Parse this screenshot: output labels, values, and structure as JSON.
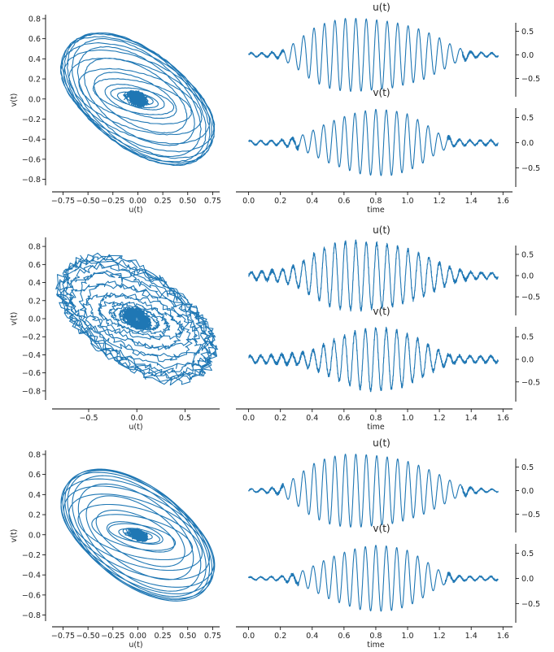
{
  "style": {
    "line_color": "#1f77b4"
  },
  "chart_data": [
    {
      "type": "line",
      "row": 0,
      "phase": {
        "xlabel": "u(t)",
        "ylabel": "v(t)",
        "xlim": [
          -0.86,
          0.82
        ],
        "ylim": [
          -0.86,
          0.84
        ],
        "xticks": [
          -0.75,
          -0.5,
          -0.25,
          0.0,
          0.25,
          0.5,
          0.75
        ],
        "xticklabels": [
          "−0.75",
          "−0.50",
          "−0.25",
          "0.00",
          "0.25",
          "0.50",
          "0.75"
        ],
        "yticks": [
          -0.8,
          -0.6,
          -0.4,
          -0.2,
          0.0,
          0.2,
          0.4,
          0.6,
          0.8
        ],
        "yticklabels": [
          "−0.8",
          "−0.6",
          "−0.4",
          "−0.2",
          "0.0",
          "0.2",
          "0.4",
          "0.6",
          "0.8"
        ]
      },
      "series_u": {
        "title": "u(t)",
        "xlim": [
          -0.08,
          1.66
        ],
        "ylim": [
          -0.85,
          0.85
        ],
        "yticks": [
          -0.5,
          0.0,
          0.5
        ],
        "yticklabels": [
          "−0.5",
          "0.0",
          "0.5"
        ],
        "x": [
          0.0,
          0.1,
          0.2,
          0.3,
          0.4,
          0.5,
          0.6,
          0.7,
          0.8,
          0.9,
          1.0,
          1.1,
          1.2,
          1.3,
          1.4,
          1.5,
          1.57
        ],
        "amplitude": [
          0.04,
          0.04,
          0.07,
          0.28,
          0.55,
          0.7,
          0.77,
          0.77,
          0.74,
          0.7,
          0.62,
          0.52,
          0.36,
          0.17,
          0.06,
          0.04,
          0.04
        ]
      },
      "series_v": {
        "title": "v(t)",
        "xlabel": "time",
        "xlim": [
          -0.08,
          1.66
        ],
        "ylim": [
          -0.85,
          0.85
        ],
        "xticks": [
          0.0,
          0.2,
          0.4,
          0.6,
          0.8,
          1.0,
          1.2,
          1.4,
          1.6
        ],
        "xticklabels": [
          "0.0",
          "0.2",
          "0.4",
          "0.6",
          "0.8",
          "1.0",
          "1.2",
          "1.4",
          "1.6"
        ],
        "yticks": [
          -0.5,
          0.0,
          0.5
        ],
        "yticklabels": [
          "−0.5",
          "0.0",
          "0.5"
        ],
        "x": [
          0.0,
          0.1,
          0.2,
          0.3,
          0.4,
          0.5,
          0.6,
          0.7,
          0.8,
          0.9,
          1.0,
          1.1,
          1.2,
          1.3,
          1.4,
          1.5,
          1.57
        ],
        "amplitude": [
          0.04,
          0.04,
          0.05,
          0.1,
          0.24,
          0.4,
          0.52,
          0.62,
          0.66,
          0.65,
          0.57,
          0.4,
          0.18,
          0.06,
          0.05,
          0.05,
          0.05
        ]
      }
    },
    {
      "type": "line",
      "row": 1,
      "phase": {
        "xlabel": "u(t)",
        "ylabel": "v(t)",
        "xlim": [
          -0.88,
          0.86
        ],
        "ylim": [
          -0.9,
          0.9
        ],
        "xticks": [
          -0.5,
          0.0,
          0.5
        ],
        "xticklabels": [
          "−0.5",
          "0.0",
          "0.5"
        ],
        "yticks": [
          -0.8,
          -0.6,
          -0.4,
          -0.2,
          0.0,
          0.2,
          0.4,
          0.6,
          0.8
        ],
        "yticklabels": [
          "−0.8",
          "−0.6",
          "−0.4",
          "−0.2",
          "0.0",
          "0.2",
          "0.4",
          "0.6",
          "0.8"
        ]
      },
      "series_u": {
        "title": "u(t)",
        "xlim": [
          -0.08,
          1.66
        ],
        "ylim": [
          -0.9,
          0.9
        ],
        "yticks": [
          -0.5,
          0.0,
          0.5
        ],
        "yticklabels": [
          "−0.5",
          "0.0",
          "0.5"
        ],
        "x": [
          0.0,
          0.1,
          0.2,
          0.3,
          0.4,
          0.5,
          0.6,
          0.7,
          0.8,
          0.9,
          1.0,
          1.1,
          1.2,
          1.3,
          1.4,
          1.5,
          1.57
        ],
        "amplitude": [
          0.08,
          0.1,
          0.14,
          0.24,
          0.48,
          0.7,
          0.8,
          0.8,
          0.76,
          0.72,
          0.62,
          0.48,
          0.3,
          0.15,
          0.08,
          0.07,
          0.06
        ]
      },
      "series_v": {
        "title": "v(t)",
        "xlabel": "time",
        "xlim": [
          -0.08,
          1.66
        ],
        "ylim": [
          -0.9,
          0.9
        ],
        "xticks": [
          0.0,
          0.2,
          0.4,
          0.6,
          0.8,
          1.0,
          1.2,
          1.4,
          1.6
        ],
        "xticklabels": [
          "0.0",
          "0.2",
          "0.4",
          "0.6",
          "0.8",
          "1.0",
          "1.2",
          "1.4",
          "1.6"
        ],
        "yticks": [
          -0.5,
          0.0,
          0.5
        ],
        "yticklabels": [
          "−0.5",
          "0.0",
          "0.5"
        ],
        "x": [
          0.0,
          0.1,
          0.2,
          0.3,
          0.4,
          0.5,
          0.6,
          0.7,
          0.8,
          0.9,
          1.0,
          1.1,
          1.2,
          1.3,
          1.4,
          1.5,
          1.57
        ],
        "amplitude": [
          0.07,
          0.08,
          0.1,
          0.12,
          0.2,
          0.36,
          0.52,
          0.64,
          0.7,
          0.66,
          0.56,
          0.38,
          0.18,
          0.08,
          0.07,
          0.07,
          0.07
        ]
      }
    },
    {
      "type": "line",
      "row": 2,
      "phase": {
        "xlabel": "u(t)",
        "ylabel": "v(t)",
        "xlim": [
          -0.86,
          0.82
        ],
        "ylim": [
          -0.86,
          0.84
        ],
        "xticks": [
          -0.75,
          -0.5,
          -0.25,
          0.0,
          0.25,
          0.5,
          0.75
        ],
        "xticklabels": [
          "−0.75",
          "−0.50",
          "−0.25",
          "0.00",
          "0.25",
          "0.50",
          "0.75"
        ],
        "yticks": [
          -0.8,
          -0.6,
          -0.4,
          -0.2,
          0.0,
          0.2,
          0.4,
          0.6,
          0.8
        ],
        "yticklabels": [
          "−0.8",
          "−0.6",
          "−0.4",
          "−0.2",
          "0.0",
          "0.2",
          "0.4",
          "0.6",
          "0.8"
        ]
      },
      "series_u": {
        "title": "u(t)",
        "xlim": [
          -0.08,
          1.66
        ],
        "ylim": [
          -0.85,
          0.85
        ],
        "yticks": [
          -0.5,
          0.0,
          0.5
        ],
        "yticklabels": [
          "−0.5",
          "0.0",
          "0.5"
        ],
        "x": [
          0.0,
          0.1,
          0.2,
          0.3,
          0.4,
          0.5,
          0.6,
          0.7,
          0.8,
          0.9,
          1.0,
          1.1,
          1.2,
          1.3,
          1.4,
          1.5,
          1.57
        ],
        "amplitude": [
          0.03,
          0.04,
          0.08,
          0.3,
          0.56,
          0.7,
          0.77,
          0.77,
          0.74,
          0.7,
          0.62,
          0.5,
          0.34,
          0.16,
          0.06,
          0.03,
          0.03
        ]
      },
      "series_v": {
        "title": "v(t)",
        "xlabel": "time",
        "xlim": [
          -0.08,
          1.66
        ],
        "ylim": [
          -0.85,
          0.85
        ],
        "xticks": [
          0.0,
          0.2,
          0.4,
          0.6,
          0.8,
          1.0,
          1.2,
          1.4,
          1.6
        ],
        "xticklabels": [
          "0.0",
          "0.2",
          "0.4",
          "0.6",
          "0.8",
          "1.0",
          "1.2",
          "1.4",
          "1.6"
        ],
        "yticks": [
          -0.5,
          0.0,
          0.5
        ],
        "yticklabels": [
          "−0.5",
          "0.0",
          "0.5"
        ],
        "x": [
          0.0,
          0.1,
          0.2,
          0.3,
          0.4,
          0.5,
          0.6,
          0.7,
          0.8,
          0.9,
          1.0,
          1.1,
          1.2,
          1.3,
          1.4,
          1.5,
          1.57
        ],
        "amplitude": [
          0.03,
          0.03,
          0.04,
          0.1,
          0.24,
          0.4,
          0.52,
          0.62,
          0.66,
          0.64,
          0.56,
          0.38,
          0.16,
          0.05,
          0.04,
          0.04,
          0.04
        ]
      }
    }
  ]
}
